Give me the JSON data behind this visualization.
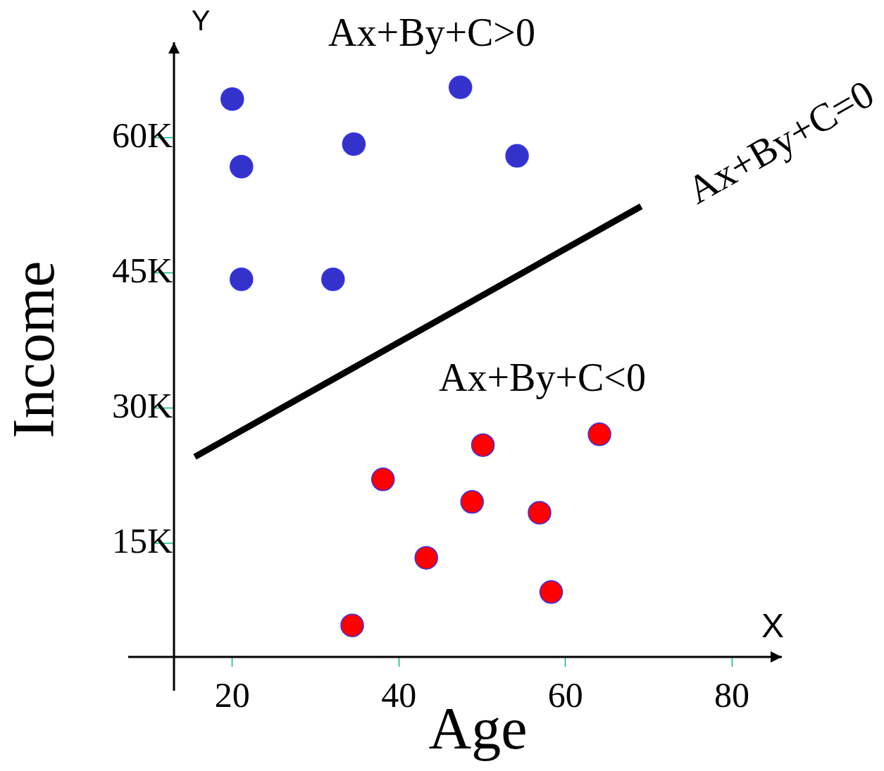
{
  "chart_data": {
    "type": "scatter",
    "xlabel": "Age",
    "ylabel": "Income",
    "annotations": [
      "Y",
      "X",
      "Ax+By+C>0",
      "Ax+By+C<0",
      "Ax+By+C=0"
    ],
    "xlim": [
      13,
      86
    ],
    "ylim": [
      2400,
      70600
    ],
    "xticks": [
      20,
      40,
      60,
      80
    ],
    "yticks": [
      {
        "value": 15000,
        "label": "15K"
      },
      {
        "value": 30000,
        "label": "30K"
      },
      {
        "value": 45000,
        "label": "45K"
      },
      {
        "value": 60000,
        "label": "60K"
      }
    ],
    "marker": "circle",
    "series": [
      {
        "color": "#3333cc",
        "x": [
          20,
          21.1,
          34.6,
          47.4,
          54.2,
          21.1,
          32.1
        ],
        "values": [
          64300,
          56800,
          59300,
          65600,
          58000,
          44300,
          44300
        ]
      },
      {
        "color": "#ff0000",
        "x": [
          38.1,
          50.1,
          64.1,
          48.8,
          56.9,
          43.3,
          58.3,
          34.4
        ],
        "values": [
          22100,
          25900,
          27100,
          19600,
          18400,
          13400,
          9600,
          5900
        ]
      },
      {
        "type": "line",
        "color": "#000000",
        "marker": "none",
        "x": [
          15.5,
          69.1
        ],
        "values": [
          24600,
          52400
        ]
      }
    ]
  }
}
